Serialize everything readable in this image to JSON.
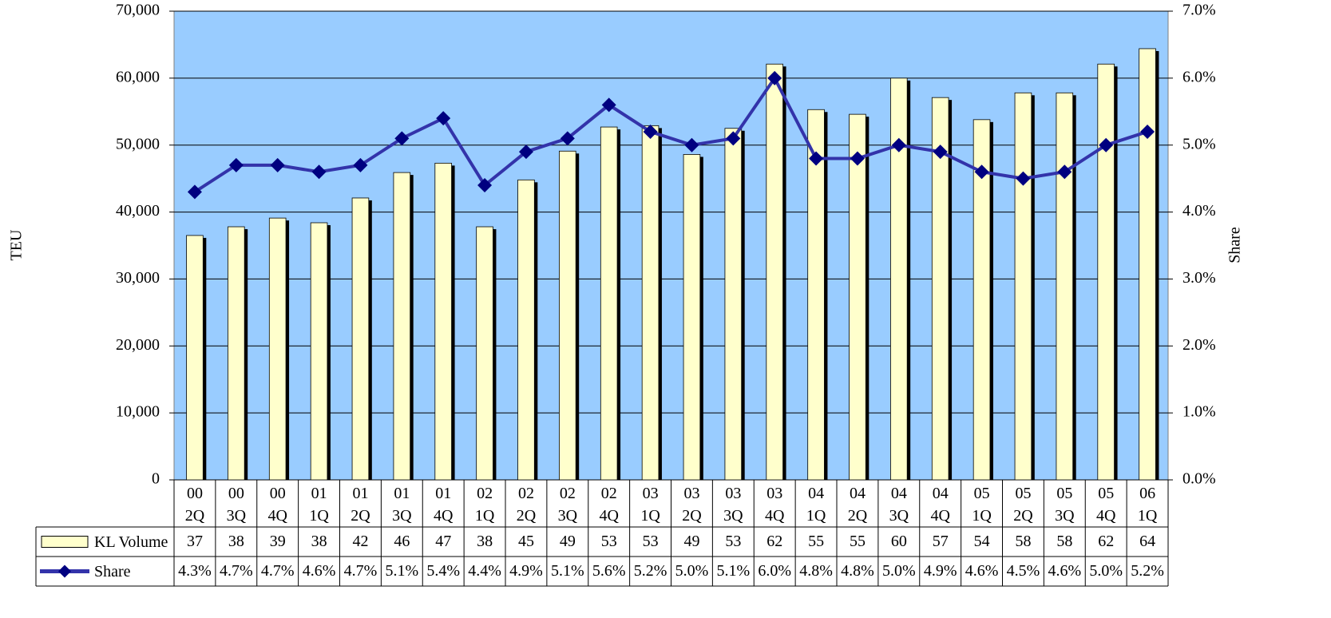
{
  "chart_data": {
    "type": "bar_line",
    "y_label": "TEU",
    "y2_label": "Share",
    "categories": [
      "00\n2Q",
      "00\n3Q",
      "00\n4Q",
      "01\n1Q",
      "01\n2Q",
      "01\n3Q",
      "01\n4Q",
      "02\n1Q",
      "02\n2Q",
      "02\n3Q",
      "02\n4Q",
      "03\n1Q",
      "03\n2Q",
      "03\n3Q",
      "03\n4Q",
      "04\n1Q",
      "04\n2Q",
      "04\n3Q",
      "04\n4Q",
      "05\n1Q",
      "05\n2Q",
      "05\n3Q",
      "05\n4Q",
      "06\n1Q"
    ],
    "series": [
      {
        "name": "KL Volume",
        "type": "bar",
        "color": "#ffffcc",
        "values": [
          36500,
          37800,
          39100,
          38400,
          42100,
          45900,
          47300,
          37800,
          44800,
          49100,
          52700,
          52900,
          48600,
          52500,
          62100,
          55300,
          54600,
          60000,
          57100,
          53800,
          57800,
          57800,
          62100,
          64400
        ],
        "value_labels": [
          "37",
          "38",
          "39",
          "38",
          "42",
          "46",
          "47",
          "38",
          "45",
          "49",
          "53",
          "53",
          "49",
          "53",
          "62",
          "55",
          "55",
          "60",
          "57",
          "54",
          "58",
          "58",
          "62",
          "64"
        ]
      },
      {
        "name": "Share",
        "type": "line",
        "axis": "y2",
        "color": "#3333aa",
        "values": [
          4.3,
          4.7,
          4.7,
          4.6,
          4.7,
          5.1,
          5.4,
          4.4,
          4.9,
          5.1,
          5.6,
          5.2,
          5.0,
          5.1,
          6.0,
          4.8,
          4.8,
          5.0,
          4.9,
          4.6,
          4.5,
          4.6,
          5.0,
          5.2
        ],
        "value_labels": [
          "4.3%",
          "4.7%",
          "4.7%",
          "4.6%",
          "4.7%",
          "5.1%",
          "5.4%",
          "4.4%",
          "4.9%",
          "5.1%",
          "5.6%",
          "5.2%",
          "5.0%",
          "5.1%",
          "6.0%",
          "4.8%",
          "4.8%",
          "5.0%",
          "4.9%",
          "4.6%",
          "4.5%",
          "4.6%",
          "5.0%",
          "5.2%"
        ]
      }
    ],
    "ylim": [
      0,
      70000
    ],
    "yticks": [
      0,
      {
        "value": 10000,
        "label": "10,000"
      },
      {
        "value": 20000,
        "label": "20,000"
      },
      {
        "value": 30000,
        "label": "30,000"
      },
      {
        "value": 40000,
        "label": "40,000"
      },
      {
        "value": 50000,
        "label": "50,000"
      },
      {
        "value": 60000,
        "label": "60,000"
      },
      {
        "value": 70000,
        "label": "70,000"
      }
    ],
    "y2lim": [
      0,
      7
    ],
    "y2ticks": [
      {
        "value": 0,
        "label": "0.0%"
      },
      {
        "value": 1,
        "label": "1.0%"
      },
      {
        "value": 2,
        "label": "2.0%"
      },
      {
        "value": 3,
        "label": "3.0%"
      },
      {
        "value": 4,
        "label": "4.0%"
      },
      {
        "value": 5,
        "label": "5.0%"
      },
      {
        "value": 6,
        "label": "6.0%"
      },
      {
        "value": 7,
        "label": "7.0%"
      }
    ],
    "grid": true,
    "background": "#99ccff"
  }
}
